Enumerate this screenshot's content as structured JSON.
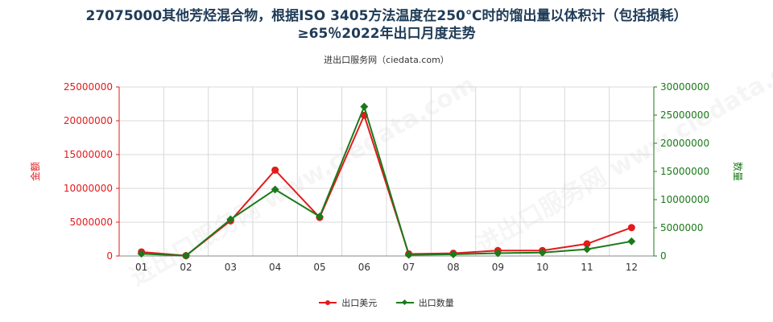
{
  "title_line1": "27075000其他芳烃混合物，根据ISO 3405方法温度在250℃时的馏出量以体积计（包括损耗）",
  "title_line2": "≥65％2022年出口月度走势",
  "subtitle": "进出口服务网（ciedata.com）",
  "watermark": "进出口服务网 www.ciedata.com",
  "colors": {
    "amount": "#e31a1c",
    "quantity": "#1a7a1a",
    "title": "#1f3b57"
  },
  "chart_data": {
    "type": "line",
    "categories": [
      "01",
      "02",
      "03",
      "04",
      "05",
      "06",
      "07",
      "08",
      "09",
      "10",
      "11",
      "12"
    ],
    "ylabel_left": "金额",
    "ylabel_right": "数量",
    "ylim_left": [
      0,
      25000000
    ],
    "ylim_right": [
      0,
      30000000
    ],
    "yticks_left": [
      "0",
      "5000000",
      "10000000",
      "15000000",
      "20000000",
      "25000000"
    ],
    "yticks_right": [
      "0",
      "5000000",
      "10000000",
      "15000000",
      "20000000",
      "25000000",
      "30000000"
    ],
    "legend_position": "bottom",
    "series": [
      {
        "name": "出口美元",
        "axis": "left",
        "values": [
          600000,
          50000,
          5200000,
          12700000,
          5700000,
          20800000,
          300000,
          400000,
          800000,
          800000,
          1800000,
          4200000
        ]
      },
      {
        "name": "出口数量",
        "axis": "right",
        "values": [
          400000,
          50000,
          6500000,
          11800000,
          7000000,
          26500000,
          200000,
          300000,
          500000,
          600000,
          1200000,
          2600000
        ]
      }
    ]
  }
}
